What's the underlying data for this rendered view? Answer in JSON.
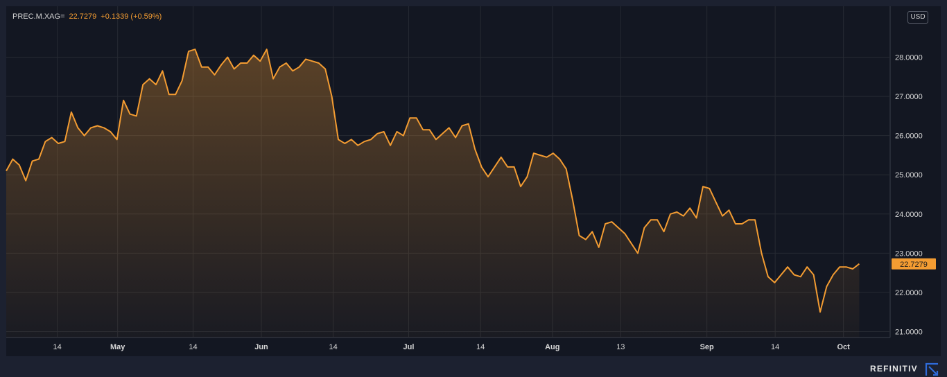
{
  "legend": {
    "symbol": "PREC.M.XAG=",
    "value": "22.7279",
    "change": "+0.1339",
    "change_pct": "(+0.59%)"
  },
  "currency": "USD",
  "brand": "REFINITIV",
  "colors": {
    "line": "#f39c32",
    "background": "#1c2130",
    "plot_background": "#131722",
    "grid": "#262a33",
    "axis_text": "#d6d6d6",
    "last_label_bg": "#f39c32"
  },
  "chart_data": {
    "type": "area",
    "series": [
      {
        "values": [
          25.1,
          25.4,
          25.25,
          24.85,
          25.35,
          25.4,
          25.85,
          25.95,
          25.8,
          25.85,
          26.6,
          26.2,
          26.0,
          26.2,
          26.25,
          26.2,
          26.1,
          25.9,
          26.9,
          26.55,
          26.5,
          27.3,
          27.45,
          27.3,
          27.65,
          27.05,
          27.05,
          27.4,
          28.15,
          28.2,
          27.75,
          27.75,
          27.55,
          27.8,
          28.0,
          27.7,
          27.85,
          27.85,
          28.05,
          27.9,
          28.2,
          27.45,
          27.75,
          27.85,
          27.65,
          27.75,
          27.95,
          27.9,
          27.85,
          27.7,
          27.0,
          25.9,
          25.8,
          25.9,
          25.75,
          25.85,
          25.9,
          26.05,
          26.1,
          25.75,
          26.1,
          26.0,
          26.45,
          26.45,
          26.15,
          26.15,
          25.9,
          26.05,
          26.2,
          25.95,
          26.25,
          26.3,
          25.65,
          25.2,
          24.95,
          25.2,
          25.45,
          25.2,
          25.2,
          24.7,
          24.95,
          25.55,
          25.5,
          25.45,
          25.55,
          25.4,
          25.15,
          24.35,
          23.45,
          23.35,
          23.55,
          23.15,
          23.75,
          23.8,
          23.65,
          23.5,
          23.25,
          23.0,
          23.65,
          23.85,
          23.85,
          23.55,
          24.0,
          24.05,
          23.95,
          24.15,
          23.9,
          24.7,
          24.65,
          24.3,
          23.95,
          24.1,
          23.75,
          23.75,
          23.85,
          23.85,
          23.0,
          22.4,
          22.25,
          22.45,
          22.65,
          22.45,
          22.4,
          22.65,
          22.45,
          21.5,
          22.15,
          22.45,
          22.65,
          22.65,
          22.6,
          22.73
        ]
      }
    ],
    "x_ticks": [
      "14",
      "May",
      "14",
      "Jun",
      "14",
      "Jul",
      "14",
      "Aug",
      "13",
      "Sep",
      "14",
      "Oct"
    ],
    "x_tick_positions": [
      14.2,
      31,
      52,
      71,
      91,
      112,
      132,
      152,
      171,
      195,
      214,
      233
    ],
    "x_range": [
      0,
      246
    ],
    "y_ticks": [
      "21.0000",
      "22.0000",
      "23.0000",
      "24.0000",
      "25.0000",
      "26.0000",
      "27.0000",
      "28.0000"
    ],
    "ylim": [
      20.85,
      29.3
    ],
    "last_value_label": "22.7279",
    "last_value": 22.7279,
    "grid": true
  }
}
